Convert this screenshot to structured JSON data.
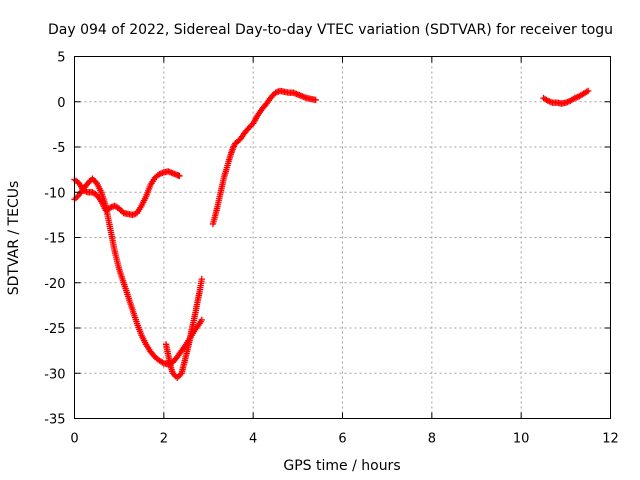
{
  "chart_data": {
    "type": "scatter",
    "title": "Day 094 of 2022, Sidereal Day-to-day VTEC variation (SDTVAR) for receiver togu",
    "xlabel": "GPS time / hours",
    "ylabel": "SDTVAR / TECUs",
    "xlim": [
      0,
      12
    ],
    "ylim": [
      -35,
      5
    ],
    "xticks": [
      0,
      2,
      4,
      6,
      8,
      10,
      12
    ],
    "yticks": [
      5,
      0,
      -5,
      -10,
      -15,
      -20,
      -25,
      -30,
      -35
    ],
    "xtick_labels": [
      "0",
      "2",
      "4",
      "6",
      "8",
      "10",
      "12"
    ],
    "ytick_labels": [
      "5",
      "0",
      "-5",
      "-10",
      "-15",
      "-20",
      "-25",
      "-30",
      "-35"
    ],
    "grid": true,
    "marker": "plus",
    "color": "#ff0000",
    "series": [
      {
        "values": [
          [
            0.0,
            -8.6
          ],
          [
            0.1,
            -9.0
          ],
          [
            0.2,
            -9.8
          ],
          [
            0.3,
            -10.0
          ],
          [
            0.4,
            -10.0
          ],
          [
            0.5,
            -10.3
          ],
          [
            0.6,
            -11.0
          ],
          [
            0.7,
            -12.0
          ],
          [
            0.8,
            -11.7
          ],
          [
            0.9,
            -11.5
          ],
          [
            1.0,
            -11.8
          ],
          [
            1.1,
            -12.3
          ],
          [
            1.2,
            -12.4
          ],
          [
            1.3,
            -12.5
          ],
          [
            1.4,
            -12.3
          ],
          [
            1.5,
            -11.5
          ],
          [
            1.6,
            -10.5
          ],
          [
            1.7,
            -9.2
          ],
          [
            1.8,
            -8.4
          ],
          [
            1.9,
            -8.0
          ],
          [
            2.0,
            -7.8
          ],
          [
            2.1,
            -7.7
          ],
          [
            2.2,
            -7.9
          ],
          [
            2.3,
            -8.1
          ],
          [
            2.35,
            -8.2
          ]
        ]
      },
      {
        "values": [
          [
            0.0,
            -10.8
          ],
          [
            0.1,
            -10.3
          ],
          [
            0.2,
            -9.6
          ],
          [
            0.3,
            -9.0
          ],
          [
            0.4,
            -8.5
          ],
          [
            0.5,
            -9.0
          ],
          [
            0.6,
            -10.0
          ],
          [
            0.7,
            -11.5
          ],
          [
            0.8,
            -14.0
          ],
          [
            0.9,
            -16.5
          ],
          [
            1.0,
            -18.5
          ],
          [
            1.1,
            -20.0
          ],
          [
            1.2,
            -21.5
          ],
          [
            1.3,
            -23.0
          ],
          [
            1.4,
            -24.5
          ],
          [
            1.5,
            -25.8
          ],
          [
            1.6,
            -26.8
          ],
          [
            1.7,
            -27.6
          ],
          [
            1.8,
            -28.2
          ],
          [
            1.9,
            -28.6
          ],
          [
            2.0,
            -28.9
          ],
          [
            2.1,
            -29.0
          ],
          [
            2.2,
            -28.8
          ],
          [
            2.3,
            -28.2
          ],
          [
            2.4,
            -27.5
          ],
          [
            2.5,
            -26.8
          ],
          [
            2.6,
            -26.0
          ],
          [
            2.7,
            -25.2
          ],
          [
            2.8,
            -24.5
          ],
          [
            2.85,
            -24.1
          ]
        ]
      },
      {
        "values": [
          [
            2.05,
            -26.8
          ],
          [
            2.1,
            -28.0
          ],
          [
            2.15,
            -29.2
          ],
          [
            2.2,
            -30.0
          ],
          [
            2.3,
            -30.5
          ],
          [
            2.4,
            -30.0
          ],
          [
            2.45,
            -29.0
          ],
          [
            2.5,
            -28.0
          ],
          [
            2.55,
            -27.0
          ],
          [
            2.6,
            -25.8
          ],
          [
            2.65,
            -24.6
          ],
          [
            2.7,
            -23.5
          ],
          [
            2.75,
            -22.2
          ],
          [
            2.8,
            -21.0
          ],
          [
            2.85,
            -19.6
          ]
        ]
      },
      {
        "values": [
          [
            3.1,
            -13.5
          ],
          [
            3.15,
            -12.6
          ],
          [
            3.2,
            -11.6
          ],
          [
            3.25,
            -10.5
          ],
          [
            3.3,
            -9.4
          ],
          [
            3.35,
            -8.3
          ],
          [
            3.4,
            -7.5
          ],
          [
            3.45,
            -6.6
          ],
          [
            3.5,
            -5.8
          ],
          [
            3.55,
            -5.1
          ],
          [
            3.6,
            -4.6
          ],
          [
            3.7,
            -4.2
          ],
          [
            3.8,
            -3.5
          ],
          [
            3.9,
            -2.9
          ],
          [
            4.0,
            -2.4
          ],
          [
            4.1,
            -1.5
          ],
          [
            4.2,
            -0.8
          ],
          [
            4.3,
            -0.2
          ],
          [
            4.4,
            0.5
          ],
          [
            4.5,
            1.0
          ],
          [
            4.6,
            1.2
          ],
          [
            4.7,
            1.1
          ],
          [
            4.8,
            1.0
          ],
          [
            4.9,
            1.0
          ],
          [
            5.0,
            0.8
          ],
          [
            5.1,
            0.6
          ],
          [
            5.2,
            0.4
          ],
          [
            5.3,
            0.3
          ],
          [
            5.4,
            0.2
          ]
        ]
      },
      {
        "values": [
          [
            10.5,
            0.4
          ],
          [
            10.6,
            0.1
          ],
          [
            10.7,
            -0.1
          ],
          [
            10.8,
            -0.1
          ],
          [
            10.9,
            -0.2
          ],
          [
            11.0,
            -0.1
          ],
          [
            11.1,
            0.1
          ],
          [
            11.2,
            0.4
          ],
          [
            11.3,
            0.6
          ],
          [
            11.4,
            0.9
          ],
          [
            11.5,
            1.2
          ]
        ]
      }
    ]
  }
}
